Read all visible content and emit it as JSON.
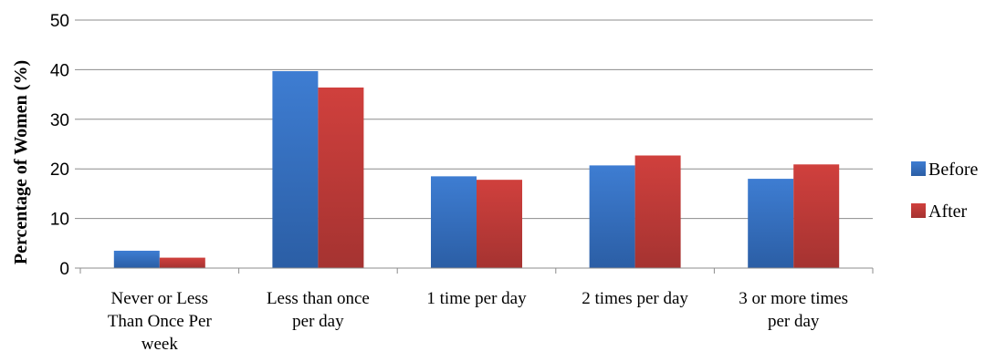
{
  "chart_data": {
    "type": "bar",
    "title": "",
    "xlabel": "",
    "ylabel": "Percentage of Women (%)",
    "ylim": [
      0,
      50
    ],
    "yticks": [
      0,
      10,
      20,
      30,
      40,
      50
    ],
    "grid": true,
    "legend_position": "right",
    "categories": [
      [
        "Never or Less",
        "Than Once Per",
        "week"
      ],
      [
        "Less than once",
        "per day"
      ],
      [
        "1 time per day"
      ],
      [
        "2 times per day"
      ],
      [
        "3 or more times",
        "per day"
      ]
    ],
    "series": [
      {
        "name": "Before",
        "color": "#3b73c2",
        "values": [
          3.5,
          39.7,
          18.5,
          20.7,
          18.0
        ]
      },
      {
        "name": "After",
        "color": "#c43d3b",
        "values": [
          2.1,
          36.4,
          17.8,
          22.7,
          20.9
        ]
      }
    ]
  }
}
